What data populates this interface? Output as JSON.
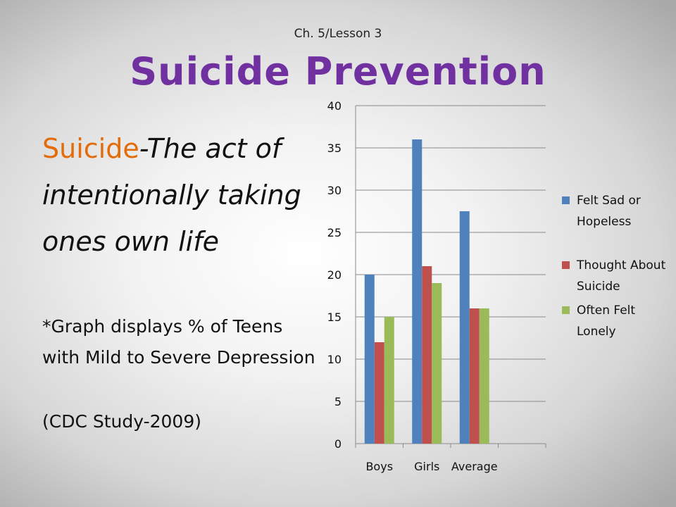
{
  "slide": {
    "subtitle": "Ch. 5/Lesson 3",
    "title": "Suicide Prevention",
    "definition_term": "Suicide",
    "definition_text": "-The act of intentionally taking ones own life",
    "note": "*Graph displays % of Teens with Mild to Severe Depression",
    "source": "(CDC Study-2009)"
  },
  "chart_data": {
    "type": "bar",
    "categories": [
      "Boys",
      "Girls",
      "Average"
    ],
    "series": [
      {
        "name": "Felt Sad or Hopeless",
        "values": [
          20,
          36,
          27.5
        ],
        "color": "#4f81bd"
      },
      {
        "name": "Thought About Suicide",
        "values": [
          12,
          21,
          16
        ],
        "color": "#c0504d"
      },
      {
        "name": "Often Felt Lonely",
        "values": [
          15,
          19,
          16
        ],
        "color": "#9bbb59"
      }
    ],
    "ylim": [
      0,
      40
    ],
    "yticks": [
      0,
      5,
      10,
      15,
      20,
      25,
      30,
      35,
      40
    ],
    "grid": true,
    "legend": "right"
  }
}
